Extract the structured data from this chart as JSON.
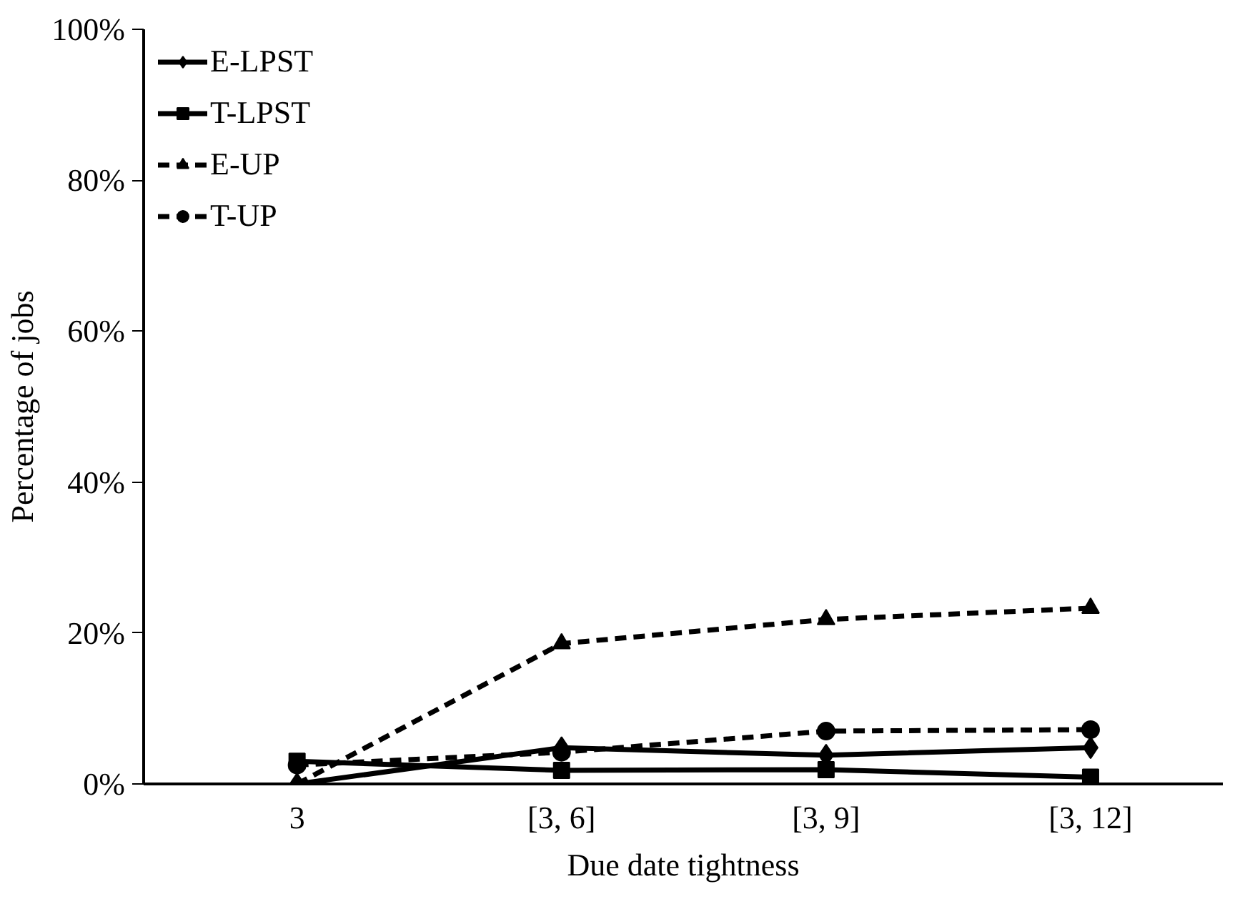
{
  "chart_data": {
    "type": "line",
    "xlabel": "Due date tightness",
    "ylabel": "Percentage of jobs",
    "categories": [
      "3",
      "[3, 6]",
      "[3, 9]",
      "[3, 12]"
    ],
    "ylim": [
      0,
      100
    ],
    "yticks": [
      {
        "value": 0,
        "label": "0%"
      },
      {
        "value": 20,
        "label": "20%"
      },
      {
        "value": 40,
        "label": "40%"
      },
      {
        "value": 60,
        "label": "60%"
      },
      {
        "value": 80,
        "label": "80%"
      },
      {
        "value": 100,
        "label": "100%"
      }
    ],
    "grid": false,
    "legend": "top left",
    "series": [
      {
        "name": "E-LPST",
        "color": "#000000",
        "marker": "diamond",
        "line_style": "solid",
        "values": [
          0,
          4.8,
          3.8,
          4.8
        ]
      },
      {
        "name": "T-LPST",
        "color": "#000000",
        "marker": "square",
        "line_style": "solid",
        "values": [
          3.0,
          1.8,
          1.9,
          0.9
        ]
      },
      {
        "name": "E-UP",
        "color": "#000000",
        "marker": "triangle",
        "line_style": "dashed",
        "values": [
          0,
          18.6,
          21.8,
          23.3
        ]
      },
      {
        "name": "T-UP",
        "color": "#000000",
        "marker": "circle",
        "line_style": "dashed",
        "values": [
          2.5,
          4.2,
          7.0,
          7.2
        ]
      }
    ]
  }
}
